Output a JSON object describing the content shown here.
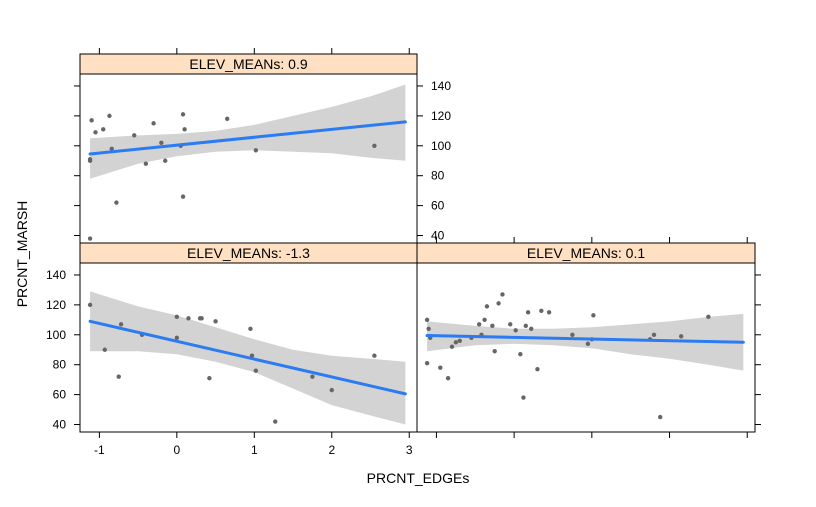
{
  "colors": {
    "strip_bg": "#FFE0C2",
    "band": "#D3D3D3",
    "line": "#2B7BF3",
    "point": "#666666"
  },
  "chart_data": {
    "type": "scatter",
    "xlabel": "PRCNT_EDGEs",
    "ylabel": "PRCNT_MARSH",
    "xlim": [
      -1.25,
      3.1
    ],
    "ylim": [
      35,
      148
    ],
    "xticks": [
      -1,
      0,
      1,
      2,
      3
    ],
    "yticks": [
      40,
      60,
      80,
      100,
      120,
      140
    ],
    "panels": [
      {
        "id": "top",
        "strip_label": "ELEV_MEANs: 0.9",
        "points": [
          [
            -1.1,
            117
          ],
          [
            -1.05,
            109
          ],
          [
            -0.95,
            111
          ],
          [
            -0.87,
            120
          ],
          [
            -0.84,
            98
          ],
          [
            -1.12,
            90
          ],
          [
            -1.12,
            91
          ],
          [
            -0.78,
            62
          ],
          [
            -0.55,
            107
          ],
          [
            -0.4,
            88
          ],
          [
            -0.3,
            115
          ],
          [
            -0.2,
            102
          ],
          [
            -0.15,
            90
          ],
          [
            0.05,
            100
          ],
          [
            0.08,
            121
          ],
          [
            0.1,
            111
          ],
          [
            0.08,
            66
          ],
          [
            0.65,
            118
          ],
          [
            1.02,
            97
          ],
          [
            2.55,
            100
          ],
          [
            -1.12,
            38
          ]
        ],
        "fit": {
          "x0": -1.12,
          "y0": 94.5,
          "x1": 2.95,
          "y1": 116.0
        },
        "band_upper": [
          [
            -1.12,
            105
          ],
          [
            -0.5,
            107
          ],
          [
            0,
            108
          ],
          [
            0.5,
            110
          ],
          [
            1,
            114
          ],
          [
            1.5,
            120
          ],
          [
            2,
            126
          ],
          [
            2.5,
            133
          ],
          [
            2.95,
            141
          ]
        ],
        "band_lower": [
          [
            -1.12,
            78
          ],
          [
            -0.5,
            88
          ],
          [
            0,
            93
          ],
          [
            0.5,
            96
          ],
          [
            1,
            97
          ],
          [
            1.5,
            96
          ],
          [
            2,
            95
          ],
          [
            2.5,
            92
          ],
          [
            2.95,
            90
          ]
        ]
      },
      {
        "id": "bottom-left",
        "strip_label": "ELEV_MEANs: -1.3",
        "points": [
          [
            -1.12,
            120
          ],
          [
            -0.93,
            90
          ],
          [
            -0.75,
            72
          ],
          [
            -0.72,
            107
          ],
          [
            -0.45,
            100
          ],
          [
            0,
            112
          ],
          [
            0,
            98
          ],
          [
            0.15,
            111
          ],
          [
            0.3,
            111
          ],
          [
            0.32,
            111
          ],
          [
            0.5,
            109
          ],
          [
            0.42,
            71
          ],
          [
            0.95,
            104
          ],
          [
            0.97,
            86
          ],
          [
            1.02,
            76
          ],
          [
            1.27,
            42
          ],
          [
            1.75,
            72
          ],
          [
            2.0,
            63
          ],
          [
            2.55,
            86
          ]
        ],
        "fit": {
          "x0": -1.12,
          "y0": 109.0,
          "x1": 2.95,
          "y1": 60.5
        },
        "band_upper": [
          [
            -1.12,
            129
          ],
          [
            -0.5,
            119
          ],
          [
            0,
            113
          ],
          [
            0.5,
            105
          ],
          [
            1,
            97
          ],
          [
            1.5,
            90
          ],
          [
            2,
            86
          ],
          [
            2.5,
            84
          ],
          [
            2.95,
            82
          ]
        ],
        "band_lower": [
          [
            -1.12,
            89
          ],
          [
            -0.5,
            89
          ],
          [
            0,
            87
          ],
          [
            0.5,
            82
          ],
          [
            1,
            75
          ],
          [
            1.5,
            64
          ],
          [
            2,
            53
          ],
          [
            2.5,
            46
          ],
          [
            2.95,
            40
          ]
        ]
      },
      {
        "id": "bottom-right",
        "strip_label": "ELEV_MEANs: 0.1",
        "points": [
          [
            -1.12,
            110
          ],
          [
            -1.1,
            104
          ],
          [
            -1.08,
            98
          ],
          [
            -1.12,
            81
          ],
          [
            -0.95,
            78
          ],
          [
            -0.85,
            71
          ],
          [
            -0.8,
            92
          ],
          [
            -0.75,
            95
          ],
          [
            -0.7,
            96
          ],
          [
            -0.55,
            98
          ],
          [
            -0.45,
            107
          ],
          [
            -0.42,
            100
          ],
          [
            -0.38,
            110
          ],
          [
            -0.35,
            119
          ],
          [
            -0.28,
            106
          ],
          [
            -0.25,
            89
          ],
          [
            -0.2,
            121
          ],
          [
            -0.15,
            127
          ],
          [
            -0.05,
            107
          ],
          [
            0.02,
            103
          ],
          [
            0.08,
            87
          ],
          [
            0.12,
            58
          ],
          [
            0.15,
            106
          ],
          [
            0.18,
            115
          ],
          [
            0.22,
            104
          ],
          [
            0.3,
            77
          ],
          [
            0.35,
            116
          ],
          [
            0.45,
            115
          ],
          [
            0.75,
            100
          ],
          [
            0.95,
            94
          ],
          [
            1.02,
            113
          ],
          [
            1.0,
            97
          ],
          [
            1.75,
            97
          ],
          [
            1.8,
            100
          ],
          [
            1.88,
            45
          ],
          [
            2.15,
            99
          ],
          [
            2.5,
            112
          ]
        ],
        "fit": {
          "x0": -1.12,
          "y0": 99.5,
          "x1": 2.95,
          "y1": 95.0
        },
        "band_upper": [
          [
            -1.12,
            109
          ],
          [
            -0.5,
            106
          ],
          [
            0,
            104
          ],
          [
            0.5,
            104
          ],
          [
            1,
            105
          ],
          [
            1.5,
            107
          ],
          [
            2,
            109
          ],
          [
            2.5,
            112
          ],
          [
            2.95,
            114
          ]
        ],
        "band_lower": [
          [
            -1.12,
            89
          ],
          [
            -0.5,
            93
          ],
          [
            0,
            94
          ],
          [
            0.5,
            93
          ],
          [
            1,
            91
          ],
          [
            1.5,
            87
          ],
          [
            2,
            84
          ],
          [
            2.5,
            80
          ],
          [
            2.95,
            76
          ]
        ]
      }
    ]
  }
}
